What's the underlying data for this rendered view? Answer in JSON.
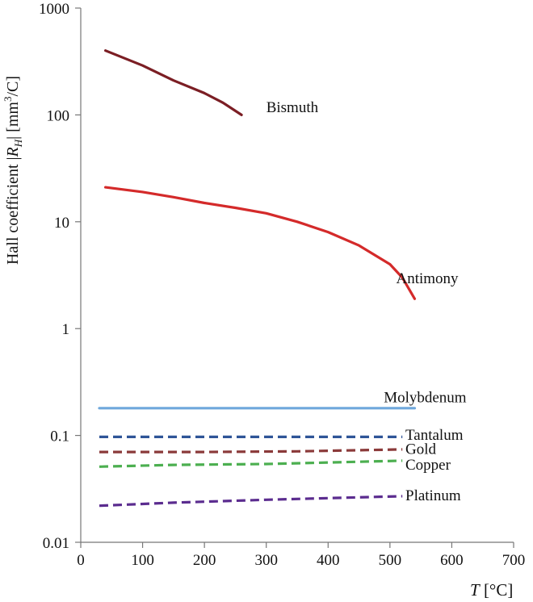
{
  "chart_data": {
    "type": "line",
    "title": "",
    "ylabel": {
      "prefix": "Hall coefficient |",
      "symbol": "R",
      "subscript": "H",
      "suffix": "|  [mm",
      "unit_exp": "3",
      "unit_tail": "/C]"
    },
    "xlabel": {
      "symbol": "T",
      "unit": " [°C]"
    },
    "x_scale": "linear",
    "y_scale": "log",
    "xlim": [
      0,
      700
    ],
    "ylim": [
      0.01,
      1000
    ],
    "x_ticks": [
      0,
      100,
      200,
      300,
      400,
      500,
      600,
      700
    ],
    "x_tick_labels": [
      "0",
      "100",
      "200",
      "300",
      "400",
      "500",
      "600",
      "700"
    ],
    "y_ticks": [
      0.01,
      0.1,
      1,
      10,
      100,
      1000
    ],
    "y_tick_labels": [
      "0.01",
      "0.1",
      "1",
      "10",
      "100",
      "1000"
    ],
    "grid": false,
    "series": [
      {
        "name": "Bismuth",
        "style": "solid",
        "color": "#7b1e24",
        "points": [
          [
            40,
            400
          ],
          [
            100,
            290
          ],
          [
            150,
            210
          ],
          [
            200,
            160
          ],
          [
            230,
            130
          ],
          [
            260,
            100
          ]
        ]
      },
      {
        "name": "Antimony",
        "style": "solid",
        "color": "#d42a2a",
        "points": [
          [
            40,
            21
          ],
          [
            100,
            19
          ],
          [
            150,
            17
          ],
          [
            200,
            15
          ],
          [
            250,
            13.5
          ],
          [
            300,
            12
          ],
          [
            350,
            10
          ],
          [
            400,
            8
          ],
          [
            450,
            6
          ],
          [
            500,
            4
          ],
          [
            520,
            3
          ],
          [
            540,
            1.9
          ]
        ]
      },
      {
        "name": "Molybdenum",
        "style": "solid",
        "color": "#6fa8dc",
        "points": [
          [
            30,
            0.18
          ],
          [
            300,
            0.18
          ],
          [
            540,
            0.18
          ]
        ]
      },
      {
        "name": "Tantalum",
        "style": "dashed",
        "color": "#2f5597",
        "points": [
          [
            30,
            0.097
          ],
          [
            300,
            0.097
          ],
          [
            520,
            0.097
          ]
        ]
      },
      {
        "name": "Gold",
        "style": "dashed",
        "color": "#8b3a3a",
        "points": [
          [
            30,
            0.07
          ],
          [
            200,
            0.07
          ],
          [
            350,
            0.071
          ],
          [
            520,
            0.074
          ]
        ]
      },
      {
        "name": "Copper",
        "style": "dashed",
        "color": "#4caf50",
        "points": [
          [
            30,
            0.051
          ],
          [
            150,
            0.053
          ],
          [
            300,
            0.054
          ],
          [
            520,
            0.058
          ]
        ]
      },
      {
        "name": "Platinum",
        "style": "dashed",
        "color": "#5b2c8f",
        "points": [
          [
            30,
            0.022
          ],
          [
            150,
            0.0235
          ],
          [
            300,
            0.025
          ],
          [
            520,
            0.027
          ]
        ]
      }
    ],
    "labels": [
      {
        "text": "Bismuth",
        "x": 300,
        "y": 120
      },
      {
        "text": "Antimony",
        "x": 510,
        "y": 3.0
      },
      {
        "text": "Molybdenum",
        "x": 490,
        "y": 0.23
      },
      {
        "text": "Tantalum",
        "x": 525,
        "y": 0.103
      },
      {
        "text": "Gold",
        "x": 525,
        "y": 0.076
      },
      {
        "text": "Copper",
        "x": 525,
        "y": 0.054
      },
      {
        "text": "Platinum",
        "x": 525,
        "y": 0.028
      }
    ]
  }
}
